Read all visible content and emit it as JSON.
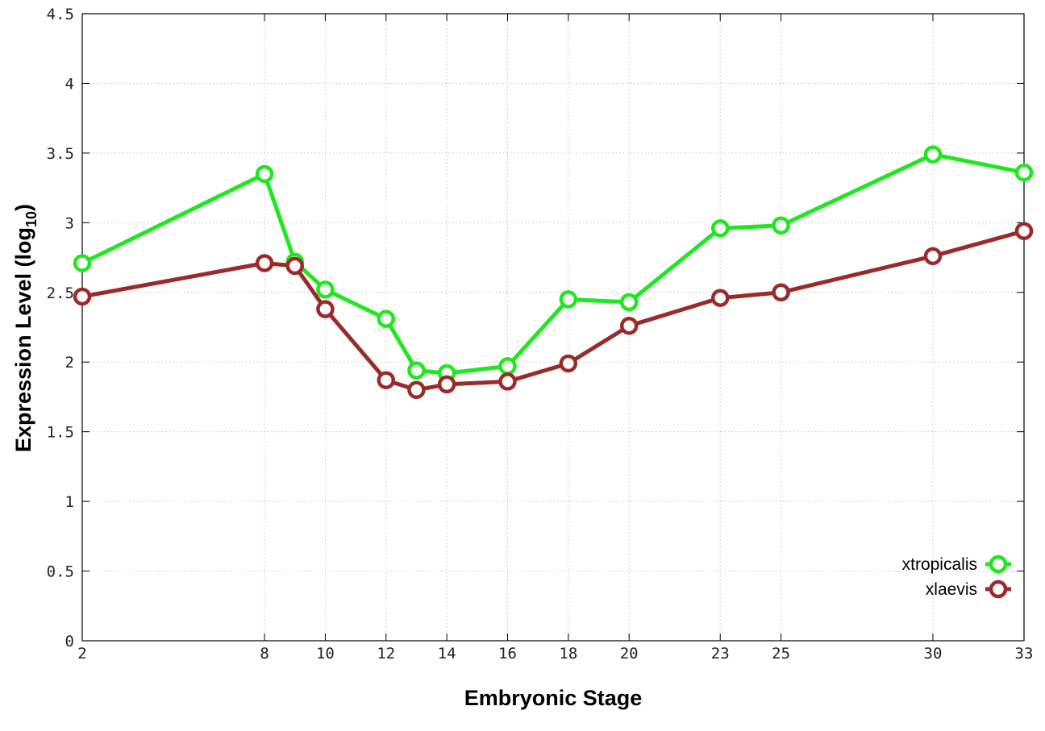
{
  "chart_data": {
    "type": "line",
    "title": "",
    "xlabel": "Embryonic Stage",
    "ylabel": "Expression Level (log",
    "ylabel_subscript": "10",
    "ylabel_close": ")",
    "x": [
      2,
      8,
      9,
      10,
      12,
      13,
      14,
      16,
      18,
      20,
      23,
      25,
      30,
      33
    ],
    "xticks": [
      2,
      8,
      10,
      12,
      14,
      16,
      18,
      20,
      23,
      25,
      30,
      33
    ],
    "xtick_labels": [
      "2",
      "8",
      "10",
      "12",
      "14",
      "16",
      "18",
      "20",
      "23",
      "25",
      "30",
      "33"
    ],
    "yticks": [
      0,
      0.5,
      1,
      1.5,
      2,
      2.5,
      3,
      3.5,
      4,
      4.5
    ],
    "ytick_labels": [
      "0",
      "0.5",
      "1",
      "1.5",
      "2",
      "2.5",
      "3",
      "3.5",
      "4",
      "4.5"
    ],
    "xlim": [
      2,
      33
    ],
    "ylim": [
      0,
      4.5
    ],
    "grid": true,
    "legend_position": "bottom-right",
    "series": [
      {
        "name": "xtropicalis",
        "color": "#1ee81e",
        "marker": "open-circle",
        "values": [
          2.71,
          3.35,
          2.72,
          2.52,
          2.31,
          1.94,
          1.92,
          1.97,
          2.45,
          2.43,
          2.96,
          2.98,
          3.49,
          3.36
        ]
      },
      {
        "name": "xlaevis",
        "color": "#9b2a2a",
        "marker": "open-circle",
        "values": [
          2.47,
          2.71,
          2.69,
          2.38,
          1.87,
          1.8,
          1.84,
          1.86,
          1.99,
          2.26,
          2.46,
          2.5,
          2.76,
          2.94
        ]
      }
    ]
  }
}
